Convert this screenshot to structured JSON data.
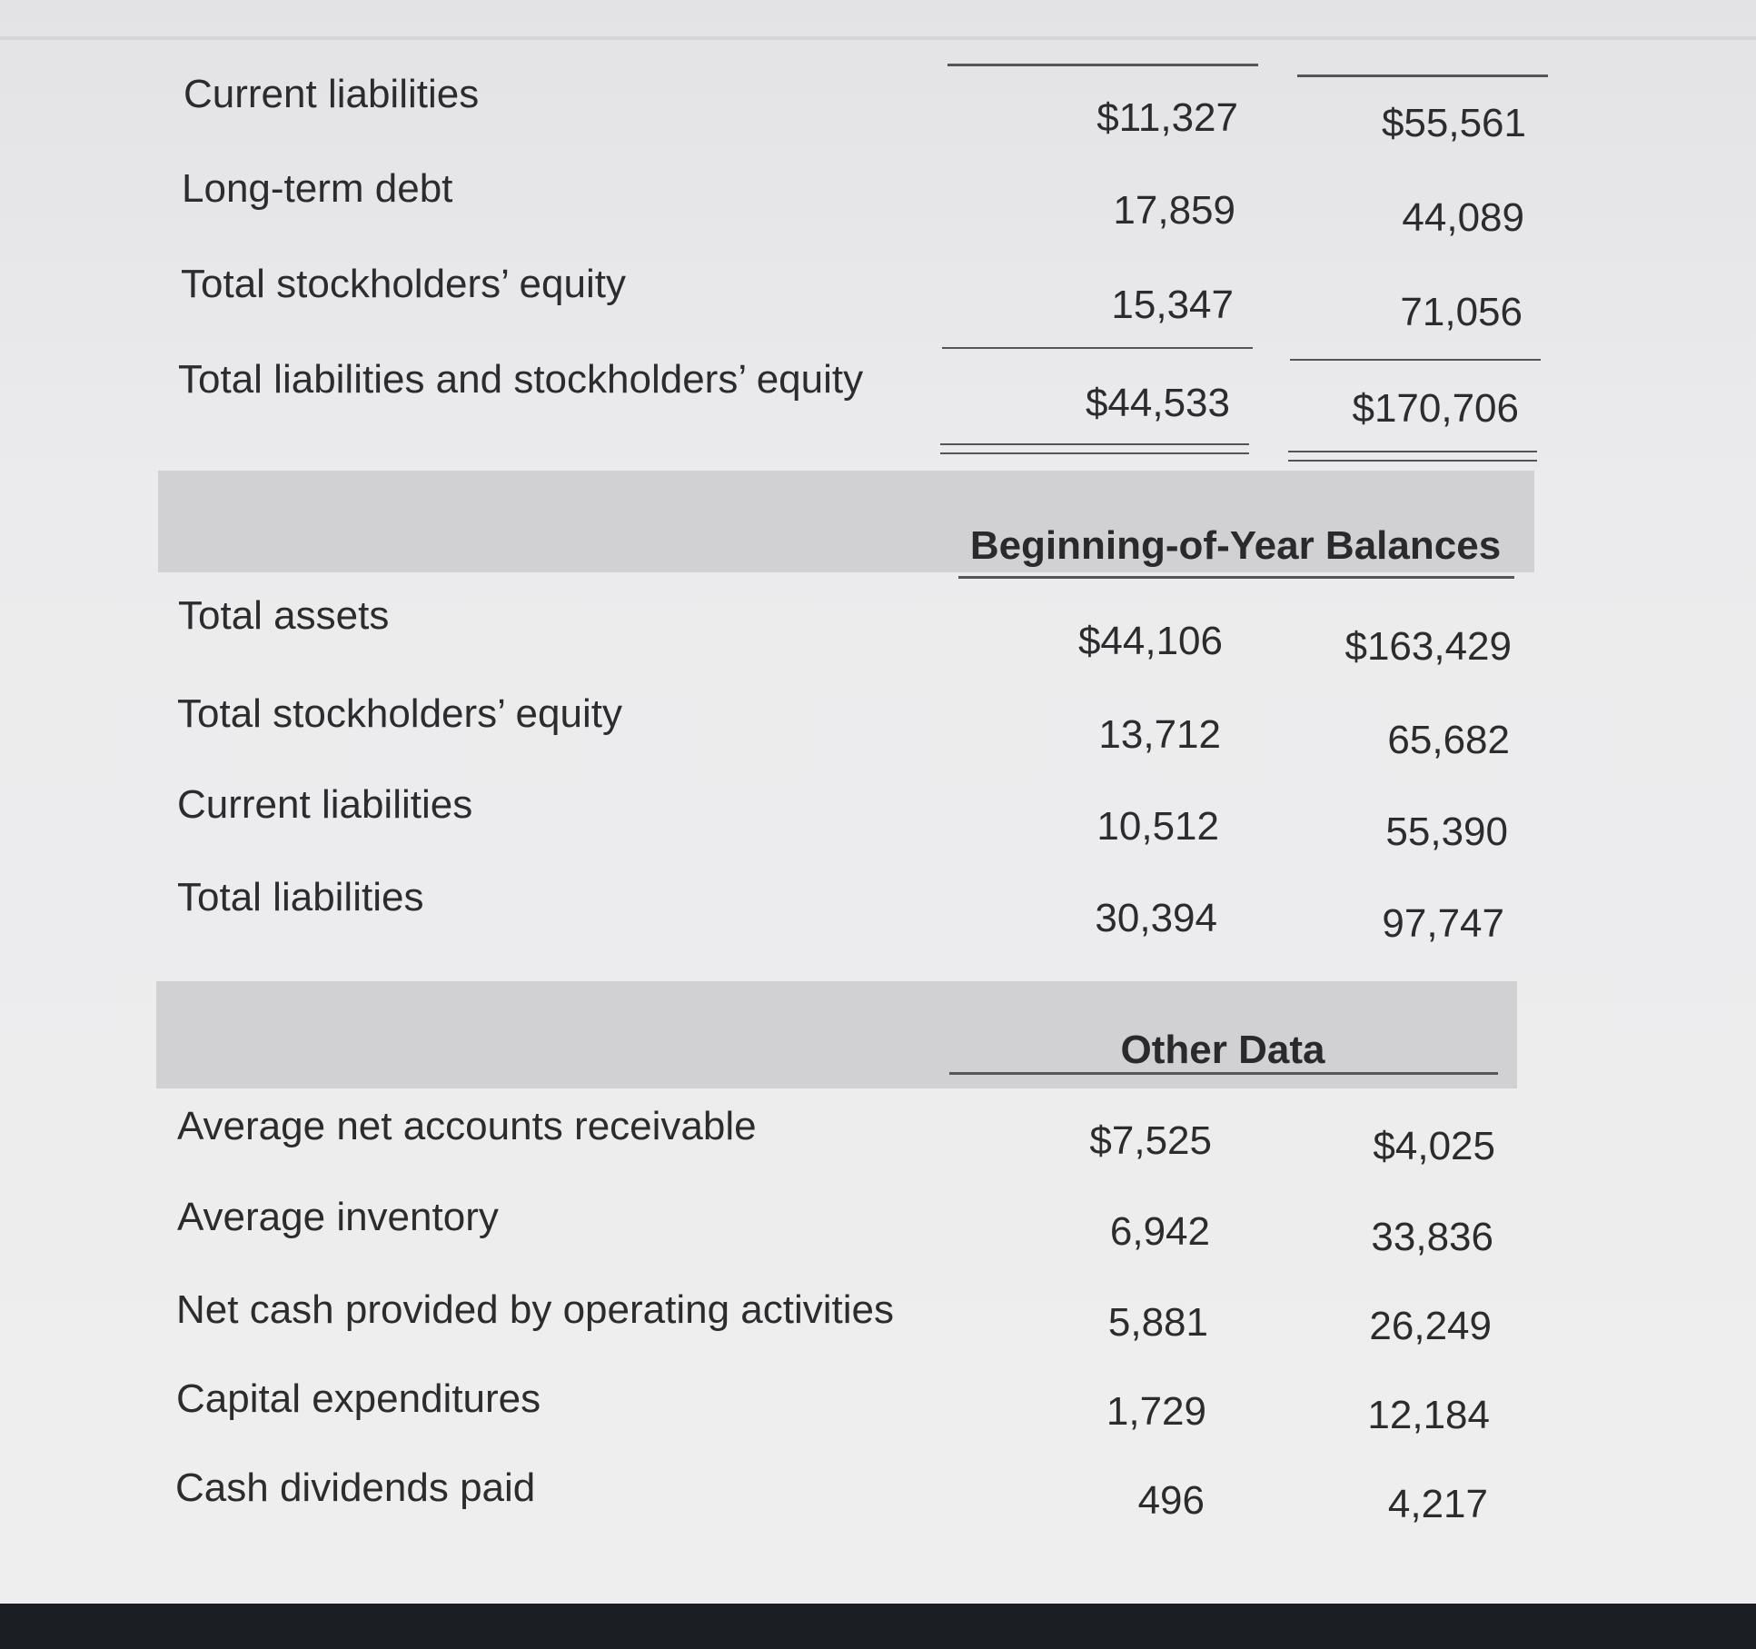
{
  "liabilities_section": {
    "rows": [
      {
        "label": "Current liabilities",
        "col1": "$11,327",
        "col2": "$55,561"
      },
      {
        "label": "Long-term debt",
        "col1": "17,859",
        "col2": "44,089"
      },
      {
        "label": "Total stockholders’ equity",
        "col1": "15,347",
        "col2": "71,056"
      },
      {
        "label": "Total liabilities and stockholders’ equity",
        "col1": "$44,533",
        "col2": "$170,706"
      }
    ]
  },
  "beginning_section": {
    "title": "Beginning-of-Year Balances",
    "rows": [
      {
        "label": "Total assets",
        "col1": "$44,106",
        "col2": "$163,429"
      },
      {
        "label": "Total stockholders’ equity",
        "col1": "13,712",
        "col2": "65,682"
      },
      {
        "label": "Current liabilities",
        "col1": "10,512",
        "col2": "55,390"
      },
      {
        "label": "Total liabilities",
        "col1": "30,394",
        "col2": "97,747"
      }
    ]
  },
  "other_section": {
    "title": "Other Data",
    "rows": [
      {
        "label": "Average net accounts receivable",
        "col1": "$7,525",
        "col2": "$4,025"
      },
      {
        "label": "Average inventory",
        "col1": "6,942",
        "col2": "33,836"
      },
      {
        "label": "Net cash provided by operating activities",
        "col1": "5,881",
        "col2": "26,249"
      },
      {
        "label": "Capital expenditures",
        "col1": "1,729",
        "col2": "12,184"
      },
      {
        "label": "Cash dividends paid",
        "col1": "496",
        "col2": "4,217"
      }
    ]
  }
}
